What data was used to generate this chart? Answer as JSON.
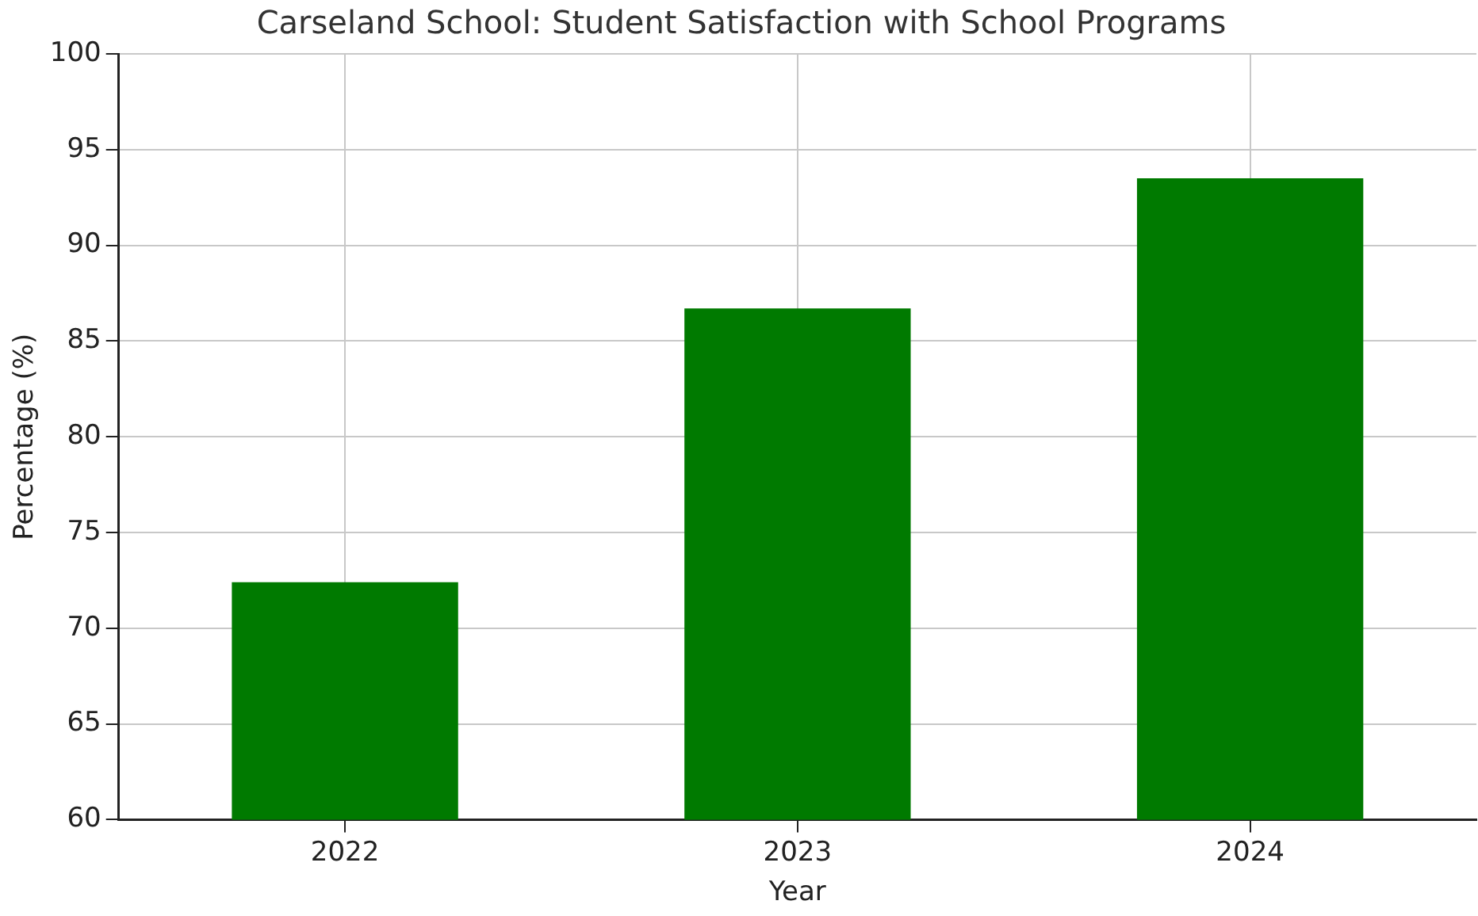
{
  "chart_data": {
    "type": "bar",
    "title": "Carseland School: Student Satisfaction with School Programs",
    "xlabel": "Year",
    "ylabel": "Percentage (%)",
    "categories": [
      "2022",
      "2023",
      "2024"
    ],
    "values": [
      72.4,
      86.7,
      93.5
    ],
    "color": "#007a00",
    "ylim": [
      60,
      100
    ],
    "yticks": [
      60,
      65,
      70,
      75,
      80,
      85,
      90,
      95,
      100
    ],
    "grid": true
  }
}
